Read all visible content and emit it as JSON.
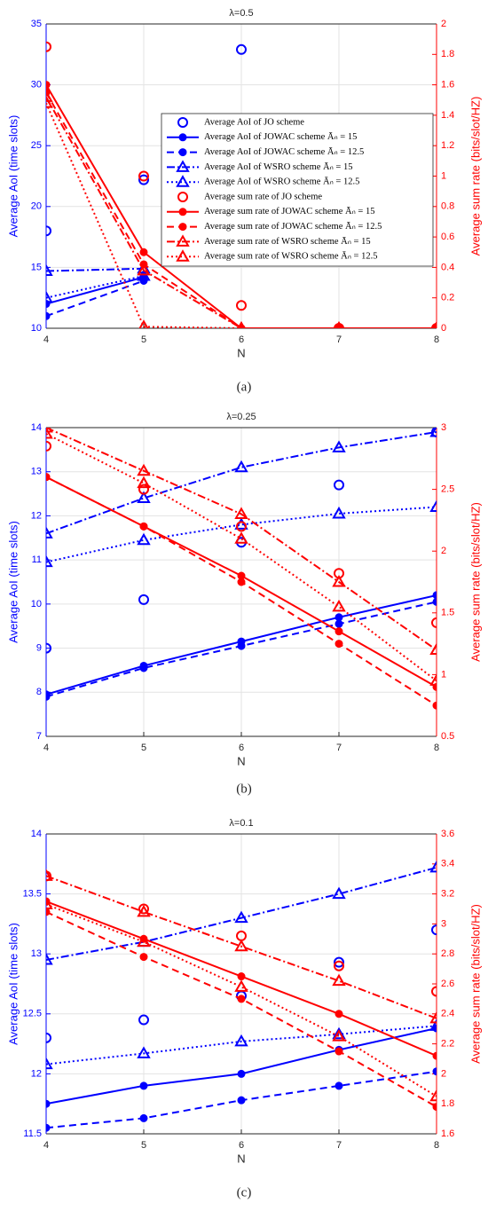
{
  "chart_data": [
    {
      "type": "line",
      "title": "λ=0.5",
      "caption": "(a)",
      "x_label": "N",
      "y_label": "Average AoI (time slots)",
      "y2_label": "Average sum rate (bits/slot/HZ)",
      "x": [
        4,
        5,
        6,
        7,
        8
      ],
      "xlim": [
        4,
        8
      ],
      "xticks": [
        4,
        5,
        6,
        7,
        8
      ],
      "ylim": [
        10,
        35
      ],
      "yticks": [
        10,
        15,
        20,
        25,
        30,
        35
      ],
      "y2lim": [
        0,
        2
      ],
      "y2ticks": [
        0,
        0.2,
        0.4,
        0.6,
        0.8,
        1,
        1.2,
        1.4,
        1.6,
        1.8,
        2
      ],
      "grid": true,
      "legend": "right",
      "series": [
        {
          "name": "Average AoI of JO scheme",
          "color": "#0000ff",
          "marker": "circle",
          "line": "none",
          "values": [
            18,
            22.2,
            32.9,
            null,
            null
          ]
        },
        {
          "name": "Average AoI of JOWAC scheme Āₙ = 15",
          "color": "#0000ff",
          "marker": "dot",
          "line": "solid",
          "values": [
            12,
            14.2,
            null,
            null,
            null
          ]
        },
        {
          "name": "Average AoI of JOWAC scheme Āₙ = 12.5",
          "color": "#0000ff",
          "marker": "dot",
          "line": "dashed",
          "values": [
            11,
            13.9,
            null,
            null,
            null
          ]
        },
        {
          "name": "Average AoI of WSRO scheme Āₙ = 15",
          "color": "#0000ff",
          "marker": "triangle",
          "line": "dashdot",
          "values": [
            14.7,
            14.9,
            null,
            null,
            null
          ]
        },
        {
          "name": "Average AoI of WSRO scheme Āₙ = 12.5",
          "color": "#0000ff",
          "marker": "triangle",
          "line": "dotted",
          "values": [
            12.5,
            14.3,
            null,
            null,
            null
          ]
        },
        {
          "name": "Average sum rate of JO scheme",
          "color": "#ff0000",
          "marker": "circle",
          "line": "none",
          "axis": "y2",
          "values": [
            1.85,
            1.0,
            0.15,
            0,
            0
          ]
        },
        {
          "name": "Average sum rate of JOWAC scheme Āₙ = 15",
          "color": "#ff0000",
          "marker": "dot",
          "line": "solid",
          "axis": "y2",
          "values": [
            1.6,
            0.5,
            0,
            0,
            0
          ]
        },
        {
          "name": "Average sum rate of JOWAC scheme Āₙ = 12.5",
          "color": "#ff0000",
          "marker": "dot",
          "line": "dashed",
          "axis": "y2",
          "values": [
            1.55,
            0.42,
            0,
            0,
            0
          ]
        },
        {
          "name": "Average sum rate of WSRO scheme Āₙ = 15",
          "color": "#ff0000",
          "marker": "triangle",
          "line": "dashdot",
          "axis": "y2",
          "values": [
            1.52,
            0.38,
            0,
            0,
            0
          ]
        },
        {
          "name": "Average sum rate of WSRO scheme Āₙ = 12.5",
          "color": "#ff0000",
          "marker": "triangle",
          "line": "dotted",
          "axis": "y2",
          "values": [
            1.48,
            0.01,
            0,
            0,
            0
          ]
        }
      ]
    },
    {
      "type": "line",
      "title": "λ=0.25",
      "caption": "(b)",
      "x_label": "N",
      "y_label": "Average AoI (time slots)",
      "y2_label": "Average sum rate (bits/slot/HZ)",
      "x": [
        4,
        5,
        6,
        7,
        8
      ],
      "xlim": [
        4,
        8
      ],
      "xticks": [
        4,
        5,
        6,
        7,
        8
      ],
      "ylim": [
        7,
        14
      ],
      "yticks": [
        7,
        8,
        9,
        10,
        11,
        12,
        13,
        14
      ],
      "y2lim": [
        0.5,
        3
      ],
      "y2ticks": [
        0.5,
        1,
        1.5,
        2,
        2.5,
        3
      ],
      "grid": true,
      "series": [
        {
          "color": "#0000ff",
          "marker": "circle",
          "line": "none",
          "values": [
            9.0,
            10.1,
            11.4,
            12.7,
            13.9
          ]
        },
        {
          "color": "#0000ff",
          "marker": "dot",
          "line": "solid",
          "values": [
            7.95,
            8.6,
            9.15,
            9.7,
            10.2
          ]
        },
        {
          "color": "#0000ff",
          "marker": "dot",
          "line": "dashed",
          "values": [
            7.9,
            8.55,
            9.05,
            9.55,
            10.05
          ]
        },
        {
          "color": "#0000ff",
          "marker": "triangle",
          "line": "dashdot",
          "values": [
            11.6,
            12.4,
            13.1,
            13.55,
            13.9
          ]
        },
        {
          "color": "#0000ff",
          "marker": "triangle",
          "line": "dotted",
          "values": [
            10.95,
            11.45,
            11.8,
            12.05,
            12.2
          ]
        },
        {
          "color": "#ff0000",
          "marker": "circle",
          "line": "none",
          "axis": "y2",
          "values": [
            2.85,
            2.5,
            2.2,
            1.82,
            1.42
          ]
        },
        {
          "color": "#ff0000",
          "marker": "dot",
          "line": "solid",
          "axis": "y2",
          "values": [
            2.6,
            2.2,
            1.8,
            1.35,
            0.9
          ]
        },
        {
          "color": "#ff0000",
          "marker": "dot",
          "line": "dashed",
          "axis": "y2",
          "values": [
            2.6,
            2.2,
            1.75,
            1.25,
            0.75
          ]
        },
        {
          "color": "#ff0000",
          "marker": "triangle",
          "line": "dashdot",
          "axis": "y2",
          "values": [
            3.0,
            2.65,
            2.3,
            1.75,
            1.2
          ]
        },
        {
          "color": "#ff0000",
          "marker": "triangle",
          "line": "dotted",
          "axis": "y2",
          "values": [
            2.95,
            2.55,
            2.1,
            1.55,
            0.95
          ]
        }
      ]
    },
    {
      "type": "line",
      "title": "λ=0.1",
      "caption": "(c)",
      "x_label": "N",
      "y_label": "Average AoI (time slots)",
      "y2_label": "Average sum rate (bits/slot/HZ)",
      "x": [
        4,
        5,
        6,
        7,
        8
      ],
      "xlim": [
        4,
        8
      ],
      "xticks": [
        4,
        5,
        6,
        7,
        8
      ],
      "ylim": [
        11.5,
        14
      ],
      "yticks": [
        11.5,
        12,
        12.5,
        13,
        13.5,
        14
      ],
      "y2lim": [
        1.6,
        3.6
      ],
      "y2ticks": [
        1.6,
        1.8,
        2,
        2.2,
        2.4,
        2.6,
        2.8,
        3,
        3.2,
        3.4,
        3.6
      ],
      "grid": true,
      "series": [
        {
          "color": "#0000ff",
          "marker": "circle",
          "line": "none",
          "values": [
            12.3,
            12.45,
            12.65,
            12.93,
            13.2
          ]
        },
        {
          "color": "#0000ff",
          "marker": "dot",
          "line": "solid",
          "values": [
            11.75,
            11.9,
            12.0,
            12.2,
            12.38
          ]
        },
        {
          "color": "#0000ff",
          "marker": "dot",
          "line": "dashed",
          "values": [
            11.55,
            11.63,
            11.78,
            11.9,
            12.02
          ]
        },
        {
          "color": "#0000ff",
          "marker": "triangle",
          "line": "dashdot",
          "values": [
            12.95,
            13.1,
            13.3,
            13.5,
            13.72
          ]
        },
        {
          "color": "#0000ff",
          "marker": "triangle",
          "line": "dotted",
          "values": [
            12.08,
            12.17,
            12.27,
            12.33,
            12.4
          ]
        },
        {
          "color": "#ff0000",
          "marker": "circle",
          "line": "none",
          "axis": "y2",
          "values": [
            3.32,
            3.1,
            2.92,
            2.72,
            2.55
          ]
        },
        {
          "color": "#ff0000",
          "marker": "dot",
          "line": "solid",
          "axis": "y2",
          "values": [
            3.15,
            2.9,
            2.65,
            2.4,
            2.12
          ]
        },
        {
          "color": "#ff0000",
          "marker": "dot",
          "line": "dashed",
          "axis": "y2",
          "values": [
            3.08,
            2.78,
            2.5,
            2.15,
            1.78
          ]
        },
        {
          "color": "#ff0000",
          "marker": "triangle",
          "line": "dashdot",
          "axis": "y2",
          "values": [
            3.32,
            3.08,
            2.85,
            2.62,
            2.37
          ]
        },
        {
          "color": "#ff0000",
          "marker": "triangle",
          "line": "dotted",
          "axis": "y2",
          "values": [
            3.13,
            2.88,
            2.58,
            2.25,
            1.85
          ]
        }
      ]
    }
  ]
}
